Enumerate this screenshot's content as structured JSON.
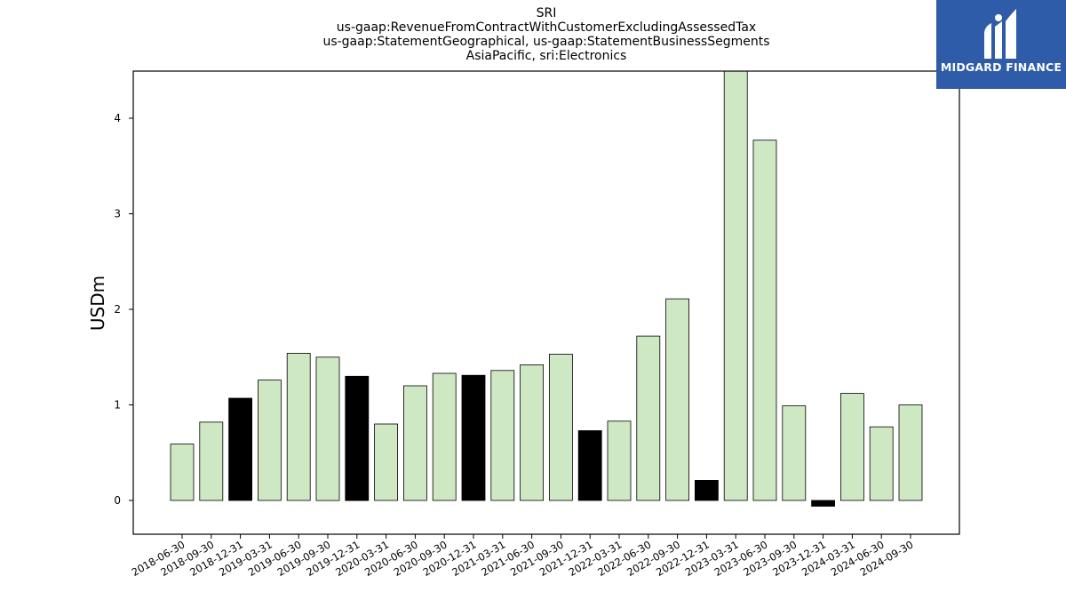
{
  "title_lines": [
    "SRI",
    "us-gaap:RevenueFromContractWithCustomerExcludingAssessedTax",
    "us-gaap:StatementGeographical, us-gaap:StatementBusinessSegments",
    "AsiaPacific, sri:Electronics"
  ],
  "logo": {
    "text": "MIDGARD FINANCE",
    "background": "#2e5ca8"
  },
  "colors": {
    "positive": "#cfe8c4",
    "derived": "#000000",
    "edge": "#000000"
  },
  "chart_data": {
    "type": "bar",
    "title": "SRI\nus-gaap:RevenueFromContractWithCustomerExcludingAssessedTax\nus-gaap:StatementGeographical, us-gaap:StatementBusinessSegments\nAsiaPacific, sri:Electronics",
    "xlabel": "",
    "ylabel": "USDm",
    "ylim": [
      -0.35,
      4.5
    ],
    "yticks": [
      0,
      1,
      2,
      3,
      4
    ],
    "grid": false,
    "categories": [
      "2018-06-30",
      "2018-09-30",
      "2018-12-31",
      "2019-03-31",
      "2019-06-30",
      "2019-09-30",
      "2019-12-31",
      "2020-03-31",
      "2020-06-30",
      "2020-09-30",
      "2020-12-31",
      "2021-03-31",
      "2021-06-30",
      "2021-09-30",
      "2021-12-31",
      "2022-03-31",
      "2022-06-30",
      "2022-09-30",
      "2022-12-31",
      "2023-03-31",
      "2023-06-30",
      "2023-09-30",
      "2023-12-31",
      "2024-03-31",
      "2024-06-30",
      "2024-09-30"
    ],
    "values": [
      0.59,
      0.82,
      1.07,
      1.26,
      1.54,
      1.5,
      1.3,
      0.8,
      1.2,
      1.33,
      1.31,
      1.36,
      1.42,
      1.53,
      0.73,
      0.83,
      1.72,
      2.11,
      0.21,
      4.5,
      3.77,
      0.99,
      -0.06,
      1.12,
      0.77,
      1.0
    ],
    "bar_colors": [
      "green",
      "green",
      "black",
      "green",
      "green",
      "green",
      "black",
      "green",
      "green",
      "green",
      "black",
      "green",
      "green",
      "green",
      "black",
      "green",
      "green",
      "green",
      "black",
      "green",
      "green",
      "green",
      "black",
      "green",
      "green",
      "green"
    ]
  }
}
